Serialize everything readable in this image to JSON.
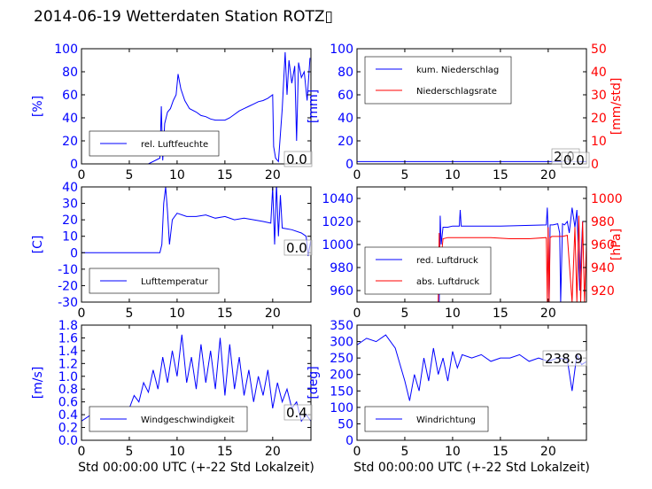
{
  "title": "2014-06-19 Wetterdaten Station ROTZ▯",
  "chart_data": [
    {
      "id": "humidity",
      "type": "line",
      "ylabel": "[%]",
      "xlabel": "",
      "xlim": [
        0,
        24
      ],
      "ylim": [
        0,
        100
      ],
      "xticks": [
        0,
        5,
        10,
        15,
        20
      ],
      "yticks": [
        0,
        20,
        40,
        60,
        80,
        100
      ],
      "legend": "bottom-left",
      "value_label": "0.0",
      "series": [
        {
          "name": "rel. Luftfeuchte",
          "color": "#0000ff",
          "x": [
            0,
            7,
            8.2,
            8.35,
            8.5,
            8.7,
            9.0,
            9.3,
            9.6,
            9.9,
            10.1,
            10.4,
            10.8,
            11.3,
            12,
            12.5,
            13,
            13.5,
            14,
            14.5,
            15,
            15.5,
            16,
            16.5,
            17,
            17.5,
            18,
            18.5,
            19,
            19.5,
            20,
            20.1,
            20.3,
            20.6,
            21,
            21.3,
            21.5,
            21.7,
            22,
            22.3,
            22.5,
            22.7,
            23,
            23.3,
            23.6,
            23.9
          ],
          "y": [
            0,
            0,
            5,
            50,
            3,
            35,
            45,
            48,
            55,
            60,
            78,
            65,
            55,
            48,
            45,
            42,
            41,
            39,
            38,
            38,
            38,
            40,
            43,
            46,
            48,
            50,
            52,
            54,
            55,
            57,
            60,
            15,
            5,
            2,
            48,
            97,
            60,
            90,
            70,
            85,
            20,
            88,
            75,
            80,
            55,
            92
          ]
        }
      ]
    },
    {
      "id": "precipitation",
      "type": "line",
      "ylabel": "[mm]",
      "ylabel2": "[mm/std]",
      "xlabel": "",
      "xlim": [
        0,
        24
      ],
      "ylim": [
        0,
        100
      ],
      "ylim2": [
        0,
        50
      ],
      "xticks": [
        0,
        5,
        10,
        15,
        20
      ],
      "yticks": [
        0,
        20,
        40,
        60,
        80,
        100
      ],
      "yticks2": [
        0,
        10,
        20,
        30,
        40,
        50
      ],
      "legend": "top-left",
      "value_label": "2.0",
      "value_label2": "0.0",
      "series": [
        {
          "name": "kum. Niederschlag",
          "color": "#0000ff",
          "axis": "left",
          "x": [
            0,
            24
          ],
          "y": [
            2.0,
            2.0
          ]
        },
        {
          "name": "Niederschlagsrate",
          "color": "#ff0000",
          "axis": "right",
          "x": [
            0,
            24
          ],
          "y": [
            0,
            0
          ]
        }
      ]
    },
    {
      "id": "temperature",
      "type": "line",
      "ylabel": "[C]",
      "xlabel": "",
      "xlim": [
        0,
        24
      ],
      "ylim": [
        -30,
        40
      ],
      "xticks": [
        0,
        5,
        10,
        15,
        20
      ],
      "yticks": [
        -30,
        -20,
        -10,
        0,
        10,
        20,
        30,
        40
      ],
      "legend": "bottom-left",
      "value_label": "0.0",
      "series": [
        {
          "name": "Lufttemperatur",
          "color": "#0000ff",
          "x": [
            0,
            8.2,
            8.4,
            8.6,
            8.8,
            9.0,
            9.2,
            9.5,
            10,
            11,
            12,
            13,
            14,
            15,
            16,
            17,
            18,
            19,
            19.8,
            20,
            20.2,
            20.4,
            20.6,
            20.8,
            21,
            22,
            23,
            23.5,
            23.7,
            24
          ],
          "y": [
            0,
            0,
            5,
            30,
            40,
            25,
            5,
            20,
            24,
            22,
            22,
            23,
            21,
            22,
            20,
            21,
            20,
            19,
            18,
            40,
            5,
            42,
            10,
            35,
            15,
            14,
            12,
            10,
            -2,
            8
          ]
        }
      ]
    },
    {
      "id": "pressure",
      "type": "line",
      "ylabel": "",
      "ylabel2": "[hPa]",
      "xlabel": "",
      "xlim": [
        0,
        24
      ],
      "ylim": [
        950,
        1050
      ],
      "ylim2": [
        910,
        1010
      ],
      "xticks": [
        0,
        5,
        10,
        15,
        20
      ],
      "yticks": [
        960,
        980,
        1000,
        1020,
        1040
      ],
      "yticks2": [
        920,
        940,
        960,
        980,
        1000
      ],
      "legend": "bottom-left",
      "series": [
        {
          "name": "red. Luftdruck",
          "color": "#0000ff",
          "axis": "left",
          "x": [
            0,
            8.5,
            8.6,
            8.7,
            8.8,
            9.0,
            9.5,
            10,
            10.7,
            10.8,
            10.9,
            11,
            15,
            19.8,
            19.9,
            20,
            20.1,
            20.2,
            20.5,
            21,
            21.2,
            21.3,
            21.5,
            21.7,
            22,
            22.2,
            22.5,
            22.8,
            23,
            23.3,
            23.6,
            24
          ],
          "y": [
            null,
            null,
            950,
            1025,
            1000,
            1015,
            1015,
            1016,
            1016,
            1030,
            1016,
            1016,
            1016,
            1017,
            1032,
            1010,
            950,
            1017,
            1017,
            1018,
            1010,
            950,
            1018,
            1017,
            1020,
            1010,
            1032,
            1015,
            1030,
            960,
            1020,
            1020
          ]
        },
        {
          "name": "abs. Luftdruck",
          "color": "#ff0000",
          "axis": "right",
          "x": [
            0,
            8.4,
            8.5,
            8.6,
            8.7,
            9.0,
            9.5,
            10,
            12,
            14,
            16,
            18,
            19.8,
            19.9,
            20.0,
            20.1,
            20.2,
            20.4,
            21,
            21.5,
            22,
            22.5,
            22.8,
            23,
            23.2,
            23.4,
            23.6,
            23.8,
            24
          ],
          "y": [
            null,
            null,
            910,
            970,
            940,
            965,
            966,
            966,
            966,
            966,
            965,
            965,
            966,
            910,
            975,
            910,
            966,
            967,
            967,
            967,
            968,
            910,
            975,
            910,
            985,
            910,
            980,
            910,
            960
          ]
        }
      ]
    },
    {
      "id": "windspeed",
      "type": "line",
      "ylabel": "[m/s]",
      "xlabel": "Std 00:00:00 UTC (+-22 Std Lokalzeit)",
      "xlim": [
        0,
        24
      ],
      "ylim": [
        0,
        1.8
      ],
      "xticks": [
        0,
        5,
        10,
        15,
        20
      ],
      "yticks": [
        0.0,
        0.2,
        0.4,
        0.6,
        0.8,
        1.0,
        1.2,
        1.4,
        1.6,
        1.8
      ],
      "legend": "bottom-left",
      "value_label": "0.4",
      "series": [
        {
          "name": "Windgeschwindigkeit",
          "color": "#0000ff",
          "x": [
            0,
            1,
            2,
            3,
            4,
            5,
            5.5,
            6,
            6.5,
            7,
            7.5,
            8,
            8.5,
            9,
            9.5,
            10,
            10.5,
            11,
            11.5,
            12,
            12.5,
            13,
            13.5,
            14,
            14.5,
            15,
            15.5,
            16,
            16.5,
            17,
            17.5,
            18,
            18.5,
            19,
            19.5,
            20,
            20.5,
            21,
            21.5,
            22,
            22.5,
            23,
            23.5,
            24
          ],
          "y": [
            0.3,
            0.4,
            0.3,
            0.45,
            0.35,
            0.5,
            0.7,
            0.6,
            0.9,
            0.75,
            1.1,
            0.8,
            1.3,
            0.9,
            1.4,
            1.0,
            1.65,
            0.9,
            1.3,
            0.8,
            1.5,
            0.9,
            1.4,
            0.8,
            1.6,
            0.7,
            1.5,
            0.8,
            1.3,
            0.7,
            1.1,
            0.6,
            1.0,
            0.7,
            1.1,
            0.5,
            0.9,
            0.6,
            0.8,
            0.5,
            0.6,
            0.3,
            0.4,
            0.3
          ]
        }
      ]
    },
    {
      "id": "winddirection",
      "type": "line",
      "ylabel": "[deg]",
      "xlabel": "Std 00:00:00 UTC (+-22 Std Lokalzeit)",
      "xlim": [
        0,
        24
      ],
      "ylim": [
        0,
        350
      ],
      "xticks": [
        0,
        5,
        10,
        15,
        20
      ],
      "yticks": [
        0,
        50,
        100,
        150,
        200,
        250,
        300,
        350
      ],
      "legend": "bottom-left",
      "value_label": "238.9",
      "series": [
        {
          "name": "Windrichtung",
          "color": "#0000ff",
          "x": [
            0,
            1,
            2,
            3,
            4,
            4.5,
            5,
            5.5,
            6,
            6.5,
            7,
            7.5,
            8,
            8.5,
            9,
            9.5,
            10,
            10.5,
            11,
            12,
            13,
            14,
            15,
            16,
            17,
            18,
            19,
            20,
            21,
            22,
            22.5,
            23,
            23.5,
            24
          ],
          "y": [
            290,
            310,
            300,
            320,
            280,
            230,
            180,
            120,
            200,
            150,
            250,
            180,
            280,
            200,
            250,
            180,
            270,
            220,
            260,
            250,
            260,
            240,
            250,
            250,
            260,
            240,
            250,
            240,
            250,
            245,
            150,
            260,
            230,
            239
          ]
        }
      ]
    }
  ]
}
